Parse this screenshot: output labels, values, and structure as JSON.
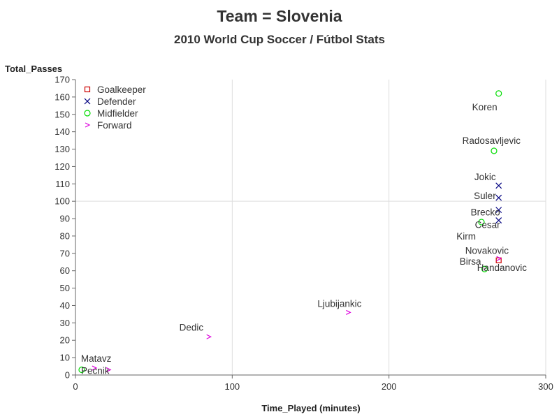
{
  "chart_data": {
    "type": "scatter",
    "title": "Team = Slovenia",
    "subtitle": "2010 World Cup Soccer / Fútbol Stats",
    "xlabel": "Time_Played (minutes)",
    "ylabel": "Total_Passes",
    "xlim": [
      0,
      300
    ],
    "ylim": [
      0,
      170
    ],
    "xticks": [
      0,
      100,
      200,
      300
    ],
    "yticks": [
      0,
      10,
      20,
      30,
      40,
      50,
      60,
      70,
      80,
      90,
      100,
      110,
      120,
      130,
      140,
      150,
      160,
      170
    ],
    "grid": "reference lines at x=100, x=200, y=100",
    "legend_position": "top-left inside",
    "series": [
      {
        "name": "Goalkeeper",
        "marker": "square",
        "color": "#cc0000",
        "points": [
          {
            "label": "Handanovic",
            "x": 270,
            "y": 66
          }
        ]
      },
      {
        "name": "Defender",
        "marker": "x",
        "color": "#000080",
        "points": [
          {
            "label": "Jokic",
            "x": 270,
            "y": 109
          },
          {
            "label": "Suler",
            "x": 270,
            "y": 102
          },
          {
            "label": "Brecko",
            "x": 270,
            "y": 95
          },
          {
            "label": "Cesar",
            "x": 270,
            "y": 89
          }
        ]
      },
      {
        "name": "Midfielder",
        "marker": "circle",
        "color": "#00dd00",
        "points": [
          {
            "label": "Koren",
            "x": 270,
            "y": 162
          },
          {
            "label": "Radosavljevic",
            "x": 267,
            "y": 129
          },
          {
            "label": "Kirm",
            "x": 259,
            "y": 88
          },
          {
            "label": "Birsa",
            "x": 261,
            "y": 61
          },
          {
            "label": "Pecnik",
            "x": 4,
            "y": 3
          }
        ]
      },
      {
        "name": "Forward",
        "marker": "chevron",
        "color": "#dd00dd",
        "points": [
          {
            "label": "Novakovic",
            "x": 270,
            "y": 67
          },
          {
            "label": "Ljubijankic",
            "x": 174,
            "y": 36
          },
          {
            "label": "Dedic",
            "x": 85,
            "y": 22
          },
          {
            "label": "Matavz",
            "x": 12,
            "y": 4
          },
          {
            "label": "",
            "x": 21,
            "y": 3
          }
        ]
      }
    ]
  }
}
